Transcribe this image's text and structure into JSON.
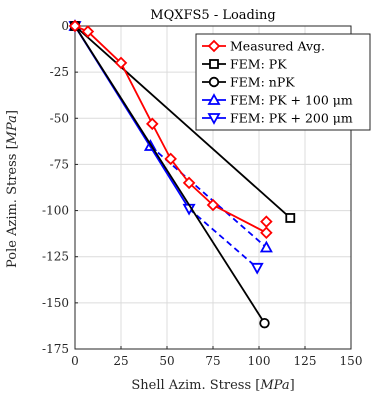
{
  "chart_data": {
    "type": "line",
    "title": "MQXFS5 - Loading",
    "xlabel": "Shell Azim. Stress [MPa]",
    "ylabel": "Pole Azim. Stress [MPa]",
    "xlim": [
      0,
      150
    ],
    "ylim": [
      -175,
      0
    ],
    "xticks": [
      "0",
      "25",
      "50",
      "75",
      "100",
      "125",
      "150"
    ],
    "yticks": [
      "0",
      "-25",
      "-50",
      "-75",
      "-100",
      "-125",
      "-150",
      "-175"
    ],
    "xtick_values": [
      0,
      25,
      50,
      75,
      100,
      125,
      150
    ],
    "ytick_values": [
      0,
      -25,
      -50,
      -75,
      -100,
      -125,
      -150,
      -175
    ],
    "grid": true,
    "legend_position": "top-right",
    "series": [
      {
        "name": "Measured Avg.",
        "color": "#ff0000",
        "marker": "diamond",
        "line": "solid",
        "points": [
          [
            0,
            0
          ],
          [
            7,
            -3
          ],
          [
            25,
            -20
          ],
          [
            42,
            -53
          ],
          [
            52,
            -72
          ],
          [
            62,
            -85
          ],
          [
            75,
            -97
          ],
          [
            104,
            -112
          ],
          [
            104,
            -106
          ]
        ]
      },
      {
        "name": "FEM: PK",
        "color": "#000000",
        "marker": "square",
        "line": "solid",
        "points": [
          [
            0,
            0
          ],
          [
            117,
            -104
          ]
        ]
      },
      {
        "name": "FEM: nPK",
        "color": "#000000",
        "marker": "circle",
        "line": "solid",
        "points": [
          [
            0,
            0
          ],
          [
            103,
            -161
          ]
        ]
      },
      {
        "name": "FEM: PK + 100 μm",
        "color": "#0000ff",
        "marker": "triangle-up",
        "line": "solid-then-dashed",
        "points": [
          [
            0,
            0
          ],
          [
            41,
            -65
          ],
          [
            104,
            -120
          ]
        ]
      },
      {
        "name": "FEM: PK + 200 μm",
        "color": "#0000ff",
        "marker": "triangle-down",
        "line": "solid-then-dashed",
        "points": [
          [
            0,
            0
          ],
          [
            62,
            -99
          ],
          [
            99,
            -131
          ]
        ]
      }
    ]
  }
}
